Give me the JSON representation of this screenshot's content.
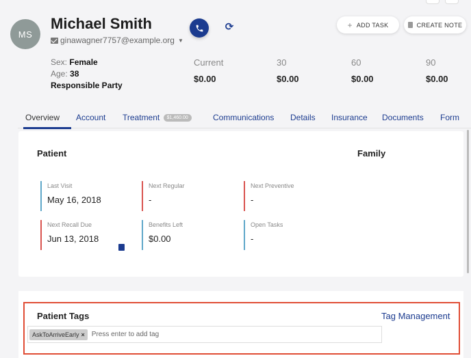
{
  "patient": {
    "initials": "MS",
    "name": "Michael Smith",
    "email": "ginawagner7757@example.org",
    "sex_label": "Sex:",
    "sex": "Female",
    "age_label": "Age:",
    "age": "38",
    "responsible_party": "Responsible Party"
  },
  "actions": {
    "add_task": "ADD TASK",
    "create_note": "CREATE NOTE"
  },
  "balances": {
    "headers": [
      "Current",
      "30",
      "60",
      "90"
    ],
    "values": [
      "$0.00",
      "$0.00",
      "$0.00",
      "$0.00"
    ]
  },
  "tabs": [
    {
      "label": "Overview",
      "active": true
    },
    {
      "label": "Account"
    },
    {
      "label": "Treatment",
      "badge": "$1,460.00"
    },
    {
      "label": "Communications"
    },
    {
      "label": "Details"
    },
    {
      "label": "Insurance"
    },
    {
      "label": "Documents"
    },
    {
      "label": "Form"
    }
  ],
  "overview": {
    "patient_heading": "Patient",
    "family_heading": "Family",
    "stats": [
      {
        "label": "Last Visit",
        "value": "May 16, 2018",
        "color": "#5fa7c9"
      },
      {
        "label": "Next Regular",
        "value": "-",
        "color": "#d9534f"
      },
      {
        "label": "Next Preventive",
        "value": "-",
        "color": "#d9534f"
      },
      {
        "label": "Next Recall Due",
        "value": "Jun 13, 2018",
        "color": "#d9534f"
      },
      {
        "label": "Benefits Left",
        "value": "$0.00",
        "color": "#5fa7c9"
      },
      {
        "label": "Open Tasks",
        "value": "-",
        "color": "#5fa7c9"
      }
    ]
  },
  "tags": {
    "title": "Patient Tags",
    "management_link": "Tag Management",
    "chips": [
      "AskToArriveEarly"
    ],
    "input_placeholder": "Press enter to add tag"
  },
  "colors": {
    "brand": "#1b3b8f",
    "highlight": "#e04c34"
  }
}
